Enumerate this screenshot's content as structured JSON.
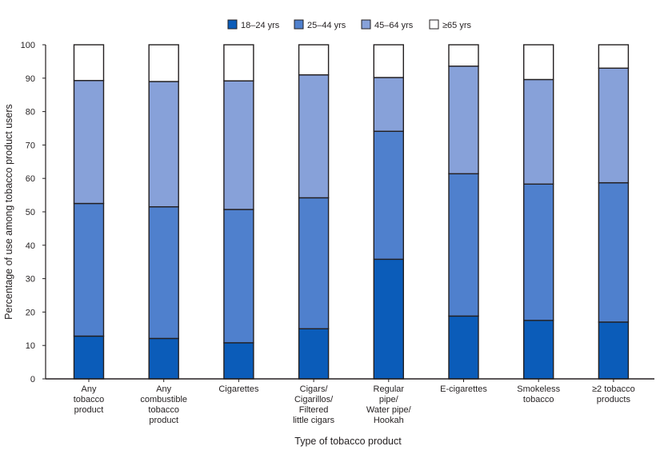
{
  "chart_data": {
    "type": "bar",
    "stacked": true,
    "xlabel": "Type of tobacco product",
    "ylabel": "Percentage of use among tobacco product users",
    "ylim": [
      0,
      100
    ],
    "yticks": [
      0,
      10,
      20,
      30,
      40,
      50,
      60,
      70,
      80,
      90,
      100
    ],
    "grid": false,
    "legend_position": "top",
    "categories": [
      [
        "Any",
        "tobacco",
        "product"
      ],
      [
        "Any",
        "combustible",
        "tobacco",
        "product"
      ],
      [
        "Cigarettes"
      ],
      [
        "Cigars/",
        "Cigarillos/",
        "Filtered",
        "little cigars"
      ],
      [
        "Regular",
        "pipe/",
        "Water pipe/",
        "Hookah"
      ],
      [
        "E-cigarettes"
      ],
      [
        "Smokeless",
        "tobacco"
      ],
      [
        "≥2 tobacco",
        "products"
      ]
    ],
    "series": [
      {
        "name": "18–24 yrs",
        "color": "#0b5cb9",
        "values": [
          12.8,
          12.1,
          10.8,
          15.0,
          35.8,
          18.8,
          17.5,
          17.0
        ]
      },
      {
        "name": "25–44 yrs",
        "color": "#4f80cd",
        "values": [
          39.7,
          39.4,
          39.9,
          39.2,
          38.3,
          42.6,
          40.8,
          41.7
        ]
      },
      {
        "name": "45–64 yrs",
        "color": "#87a1d9",
        "values": [
          36.8,
          37.5,
          38.5,
          36.8,
          16.1,
          32.2,
          31.3,
          34.3
        ]
      },
      {
        "name": "≥65 yrs",
        "color": "#ffffff",
        "values": [
          10.7,
          11.0,
          10.8,
          9.0,
          9.8,
          6.4,
          10.4,
          7.0
        ]
      }
    ]
  }
}
